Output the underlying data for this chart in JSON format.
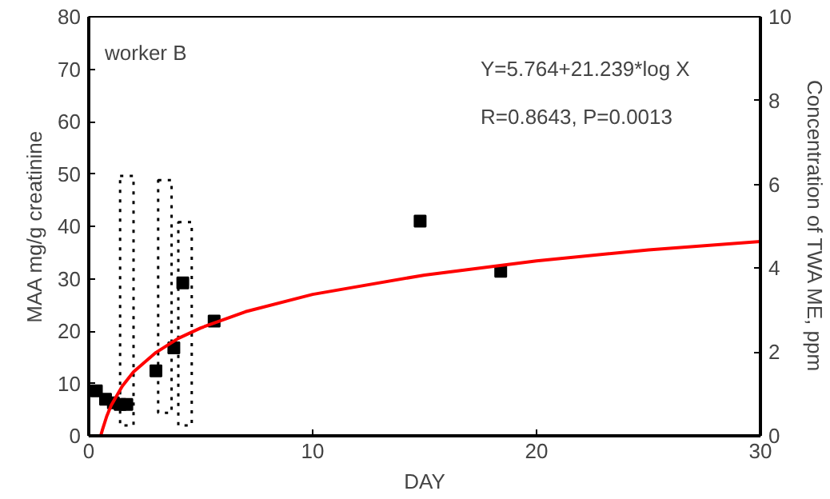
{
  "chart_data": {
    "type": "scatter",
    "xlabel": "DAY",
    "ylabel": "MAA mg/g creatinine",
    "y2label": "Concentration of TWA ME, ppm",
    "xlim": [
      0,
      30
    ],
    "xticks": [
      0,
      10,
      20,
      30
    ],
    "ylim": [
      0,
      80
    ],
    "yticks": [
      0,
      10,
      20,
      30,
      40,
      50,
      60,
      70,
      80
    ],
    "y2lim": [
      0,
      10
    ],
    "y2ticks": [
      0,
      2,
      4,
      6,
      8,
      10
    ],
    "annotations": [
      "worker B",
      "Y=5.764+21.239*log X",
      "R=0.8643, P=0.0013"
    ],
    "series": [
      {
        "type": "bar",
        "axis": "y2",
        "color": "#000000",
        "line_style": "dotted",
        "x": [
          1.7,
          3.4,
          4.3
        ],
        "base": [
          0.25,
          0.55,
          0.25
        ],
        "values": [
          5.95,
          5.55,
          4.85
        ]
      },
      {
        "color": "#000000",
        "marker": "square",
        "x": [
          0.34,
          0.75,
          1.1,
          1.4,
          1.7,
          3.0,
          3.8,
          4.2,
          5.6,
          14.8,
          18.4
        ],
        "values": [
          8.6,
          7.0,
          6.3,
          6.0,
          6.0,
          12.4,
          16.8,
          29.2,
          21.9,
          41,
          31.4
        ]
      },
      {
        "type": "line",
        "color": "#ff0000",
        "line_style": "solid",
        "x": [
          0.54,
          0.6,
          0.8,
          1,
          1.5,
          2,
          3,
          4,
          5,
          7,
          10,
          15,
          20,
          25,
          30
        ],
        "values": [
          0.1,
          1.0,
          3.7,
          5.8,
          9.5,
          12.2,
          15.9,
          18.6,
          20.6,
          23.7,
          27.0,
          30.7,
          33.4,
          35.5,
          37.1
        ]
      }
    ]
  }
}
